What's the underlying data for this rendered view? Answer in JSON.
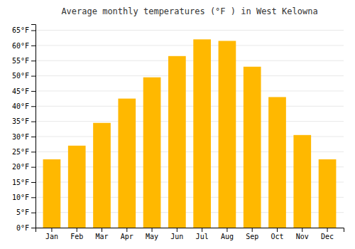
{
  "chart_data": {
    "type": "bar",
    "title": "Average monthly temperatures (°F ) in West Kelowna",
    "categories": [
      "Jan",
      "Feb",
      "Mar",
      "Apr",
      "May",
      "Jun",
      "Jul",
      "Aug",
      "Sep",
      "Oct",
      "Nov",
      "Dec"
    ],
    "values": [
      22.5,
      27,
      34.5,
      42.5,
      49.5,
      56.5,
      62,
      61.5,
      53,
      43,
      30.5,
      22.5
    ],
    "color": "#FFB800",
    "ylim": [
      0,
      67
    ],
    "yticks": [
      {
        "value": 0,
        "label": "0°F"
      },
      {
        "value": 5,
        "label": "5°F"
      },
      {
        "value": 10,
        "label": "10°F"
      },
      {
        "value": 15,
        "label": "15°F"
      },
      {
        "value": 20,
        "label": "20°F"
      },
      {
        "value": 25,
        "label": "25°F"
      },
      {
        "value": 30,
        "label": "30°F"
      },
      {
        "value": 35,
        "label": "35°F"
      },
      {
        "value": 40,
        "label": "40°F"
      },
      {
        "value": 45,
        "label": "45°F"
      },
      {
        "value": 50,
        "label": "50°F"
      },
      {
        "value": 55,
        "label": "55°F"
      },
      {
        "value": 60,
        "label": "60°F"
      },
      {
        "value": 65,
        "label": "65°F"
      }
    ],
    "grid": true
  }
}
